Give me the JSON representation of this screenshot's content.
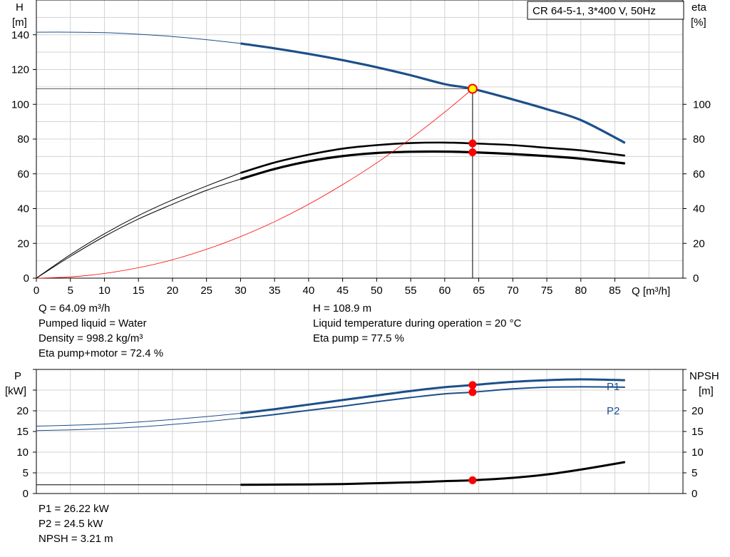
{
  "colors": {
    "blue": "#1c4f8a",
    "black": "#000000",
    "red": "#ff0000",
    "grid": "#d3d3d3",
    "marker_yellow": "#ffff00"
  },
  "chart_data": [
    {
      "type": "line",
      "title": "CR 64-5-1, 3*400 V, 50Hz",
      "xlabel": "Q [m³/h]",
      "ylabel_left": [
        "H",
        "[m]"
      ],
      "ylabel_right": [
        "eta",
        "[%]"
      ],
      "xlim": [
        0,
        95
      ],
      "ylim": [
        0,
        160
      ],
      "grid": true,
      "x_ticks": [
        0,
        5,
        10,
        15,
        20,
        25,
        30,
        35,
        40,
        45,
        50,
        55,
        60,
        65,
        70,
        75,
        80,
        85
      ],
      "y_ticks_left": [
        0,
        20,
        40,
        60,
        80,
        100,
        120,
        140
      ],
      "y_ticks_right": [
        0,
        20,
        40,
        60,
        80,
        100
      ],
      "series": [
        {
          "key": "H",
          "x": [
            0,
            5,
            10,
            15,
            20,
            25,
            30,
            35,
            40,
            45,
            50,
            55,
            60,
            64.09,
            70,
            75,
            80,
            86.5
          ],
          "y": [
            141.5,
            141.5,
            141.2,
            140.3,
            139,
            137.2,
            135,
            132.2,
            129,
            125.4,
            121.3,
            116.7,
            111.6,
            108.9,
            102.8,
            97.2,
            90.9,
            77.8
          ]
        },
        {
          "key": "eta_pump",
          "x": [
            0,
            5,
            10,
            15,
            20,
            25,
            30,
            35,
            40,
            45,
            50,
            55,
            60,
            64.09,
            70,
            75,
            80,
            86.5
          ],
          "y": [
            0,
            13.5,
            25.5,
            36,
            45,
            53,
            60.5,
            66.5,
            71,
            74.5,
            76.5,
            77.7,
            78,
            77.5,
            76.5,
            75,
            73.5,
            70.5
          ]
        },
        {
          "key": "eta_pump_motor",
          "x": [
            0,
            5,
            10,
            15,
            20,
            25,
            30,
            35,
            40,
            45,
            50,
            55,
            60,
            64.09,
            70,
            75,
            80,
            86.5
          ],
          "y": [
            0,
            12.5,
            24,
            34,
            42.5,
            50.5,
            57,
            62.8,
            67.2,
            70.2,
            72,
            72.7,
            72.8,
            72.4,
            71.4,
            70.2,
            68.7,
            66
          ]
        },
        {
          "key": "system_curve",
          "x": [
            0,
            5,
            10,
            15,
            20,
            25,
            30,
            35,
            40,
            45,
            50,
            55,
            60,
            64.09
          ],
          "y": [
            0,
            0.7,
            2.7,
            6,
            10.6,
            16.6,
            23.9,
            32.5,
            42.5,
            53.8,
            66.3,
            80.3,
            95.5,
            108.9
          ]
        }
      ],
      "duty_point": {
        "Q": 64.09,
        "H": 108.9,
        "eta_pump": 77.5,
        "eta_pump_motor": 72.4
      }
    },
    {
      "type": "line",
      "xlim": [
        0,
        95
      ],
      "ylim": [
        0,
        30
      ],
      "ylabel_left": [
        "P",
        "[kW]"
      ],
      "ylabel_right": [
        "NPSH",
        "[m]"
      ],
      "grid": true,
      "y_ticks_left": [
        0,
        5,
        10,
        15,
        20
      ],
      "y_ticks_right": [
        0,
        5,
        10,
        15,
        20
      ],
      "series": [
        {
          "name": "P1",
          "key": "P1",
          "x": [
            0,
            5,
            10,
            15,
            20,
            25,
            30,
            35,
            40,
            45,
            50,
            55,
            60,
            64.09,
            70,
            75,
            80,
            86.5
          ],
          "y": [
            16.3,
            16.5,
            16.8,
            17.3,
            17.9,
            18.6,
            19.4,
            20.4,
            21.5,
            22.6,
            23.7,
            24.8,
            25.7,
            26.22,
            27,
            27.4,
            27.6,
            27.4
          ]
        },
        {
          "name": "P2",
          "key": "P2",
          "x": [
            0,
            5,
            10,
            15,
            20,
            25,
            30,
            35,
            40,
            45,
            50,
            55,
            60,
            64.09,
            70,
            75,
            80,
            86.5
          ],
          "y": [
            15.2,
            15.4,
            15.7,
            16.1,
            16.7,
            17.4,
            18.2,
            19.1,
            20.1,
            21.1,
            22.2,
            23.2,
            24.1,
            24.5,
            25.3,
            25.7,
            25.8,
            25.7
          ]
        },
        {
          "key": "NPSH",
          "x": [
            0,
            30,
            35,
            40,
            45,
            50,
            55,
            60,
            64.09,
            70,
            75,
            80,
            86.5
          ],
          "y": [
            2.1,
            2.1,
            2.15,
            2.2,
            2.3,
            2.5,
            2.7,
            3.0,
            3.21,
            3.8,
            4.6,
            5.8,
            7.6
          ]
        }
      ],
      "duty_point": {
        "Q": 64.09,
        "P1": 26.22,
        "P2": 24.5,
        "NPSH": 3.21
      }
    }
  ],
  "info_top_left": [
    "Q = 64.09 m³/h",
    "Pumped liquid = Water",
    "Density = 998.2 kg/m³",
    "Eta pump+motor = 72.4 %"
  ],
  "info_top_right": [
    "H = 108.9 m",
    "Liquid temperature during operation = 20 °C",
    "Eta pump = 77.5 %"
  ],
  "info_bottom": [
    "P1 = 26.22 kW",
    "P2 = 24.5 kW",
    "NPSH = 3.21 m"
  ]
}
